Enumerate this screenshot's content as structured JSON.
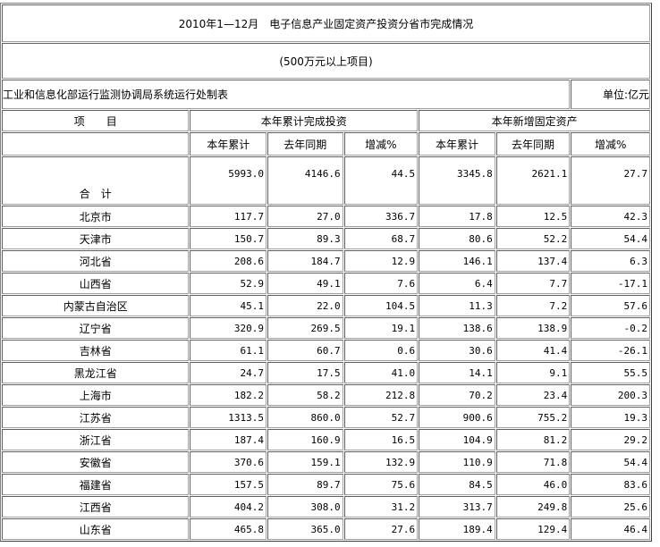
{
  "title": "2010年1—12月　电子信息产业固定资产投资分省市完成情况",
  "subtitle": "(500万元以上项目)",
  "source": "工业和信息化部运行监测协调局系统运行处制表",
  "unit": "单位:亿元",
  "header": {
    "item": "项　　目",
    "group1": "本年累计完成投资",
    "group2": "本年新增固定资产",
    "sub": [
      "本年累计",
      "去年同期",
      "增减%",
      "本年累计",
      "去年同期",
      "增减%"
    ]
  },
  "total": {
    "name": "合　计",
    "values": [
      "5993.0",
      "4146.6",
      "44.5",
      "3345.8",
      "2621.1",
      "27.7"
    ]
  },
  "rows": [
    {
      "name": "北京市",
      "values": [
        "117.7",
        "27.0",
        "336.7",
        "17.8",
        "12.5",
        "42.3"
      ]
    },
    {
      "name": "天津市",
      "values": [
        "150.7",
        "89.3",
        "68.7",
        "80.6",
        "52.2",
        "54.4"
      ]
    },
    {
      "name": "河北省",
      "values": [
        "208.6",
        "184.7",
        "12.9",
        "146.1",
        "137.4",
        "6.3"
      ]
    },
    {
      "name": "山西省",
      "values": [
        "52.9",
        "49.1",
        "7.6",
        "6.4",
        "7.7",
        "-17.1"
      ]
    },
    {
      "name": "内蒙古自治区",
      "values": [
        "45.1",
        "22.0",
        "104.5",
        "11.3",
        "7.2",
        "57.6"
      ]
    },
    {
      "name": "辽宁省",
      "values": [
        "320.9",
        "269.5",
        "19.1",
        "138.6",
        "138.9",
        "-0.2"
      ]
    },
    {
      "name": "吉林省",
      "values": [
        "61.1",
        "60.7",
        "0.6",
        "30.6",
        "41.4",
        "-26.1"
      ]
    },
    {
      "name": "黑龙江省",
      "values": [
        "24.7",
        "17.5",
        "41.0",
        "14.1",
        "9.1",
        "55.5"
      ]
    },
    {
      "name": "上海市",
      "values": [
        "182.2",
        "58.2",
        "212.8",
        "70.2",
        "23.4",
        "200.3"
      ]
    },
    {
      "name": "江苏省",
      "values": [
        "1313.5",
        "860.0",
        "52.7",
        "900.6",
        "755.2",
        "19.3"
      ]
    },
    {
      "name": "浙江省",
      "values": [
        "187.4",
        "160.9",
        "16.5",
        "104.9",
        "81.2",
        "29.2"
      ]
    },
    {
      "name": "安徽省",
      "values": [
        "370.6",
        "159.1",
        "132.9",
        "110.9",
        "71.8",
        "54.4"
      ]
    },
    {
      "name": "福建省",
      "values": [
        "157.5",
        "89.7",
        "75.6",
        "84.5",
        "46.0",
        "83.6"
      ]
    },
    {
      "name": "江西省",
      "values": [
        "404.2",
        "308.0",
        "31.2",
        "313.7",
        "249.8",
        "25.6"
      ]
    },
    {
      "name": "山东省",
      "values": [
        "465.8",
        "365.0",
        "27.6",
        "189.4",
        "129.4",
        "46.4"
      ]
    }
  ]
}
